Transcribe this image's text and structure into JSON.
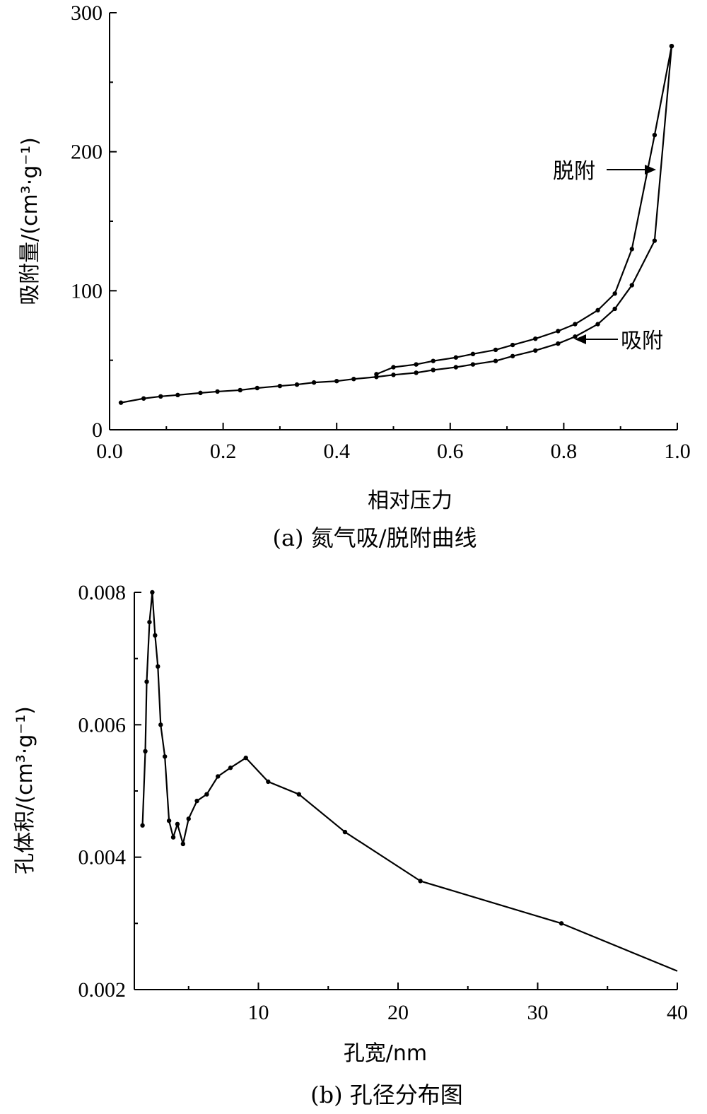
{
  "chart_data": [
    {
      "type": "line",
      "caption": "(a) 氮气吸/脱附曲线",
      "xlabel": "相对压力",
      "ylabel": "吸附量/(cm³·g⁻¹)",
      "xlim": [
        0.0,
        1.0
      ],
      "ylim": [
        0,
        300
      ],
      "x_ticks": [
        "0.0",
        "0.2",
        "0.4",
        "0.6",
        "0.8",
        "1.0"
      ],
      "y_ticks": [
        "0",
        "100",
        "200",
        "300"
      ],
      "grid": false,
      "series": [
        {
          "name": "吸附",
          "x": [
            0.02,
            0.06,
            0.09,
            0.12,
            0.16,
            0.19,
            0.23,
            0.26,
            0.3,
            0.33,
            0.36,
            0.4,
            0.43,
            0.47,
            0.5,
            0.54,
            0.57,
            0.61,
            0.64,
            0.68,
            0.71,
            0.75,
            0.79,
            0.82,
            0.86,
            0.89,
            0.92,
            0.96,
            0.99
          ],
          "y": [
            19.5,
            22.5,
            24,
            25,
            26.5,
            27.5,
            28.5,
            30,
            31.5,
            32.5,
            34,
            35,
            36.5,
            38,
            39.5,
            41,
            43,
            45,
            47,
            49.5,
            53,
            57,
            62,
            67,
            76,
            87,
            104,
            136,
            276
          ]
        },
        {
          "name": "脱附",
          "x": [
            0.47,
            0.5,
            0.54,
            0.57,
            0.61,
            0.64,
            0.68,
            0.71,
            0.75,
            0.79,
            0.82,
            0.86,
            0.89,
            0.92,
            0.96,
            0.99
          ],
          "y": [
            40,
            45,
            47,
            49.5,
            52,
            54.5,
            57.5,
            61,
            65.5,
            71,
            76,
            86,
            98,
            130,
            212,
            276
          ]
        }
      ],
      "annotations": [
        "脱附",
        "吸附"
      ]
    },
    {
      "type": "line",
      "caption": "(b) 孔径分布图",
      "xlabel": "孔宽/nm",
      "ylabel": "孔体积/(cm³·g⁻¹)",
      "xlim": [
        1.5,
        40
      ],
      "ylim": [
        0.002,
        0.008
      ],
      "x_ticks": [
        "10",
        "20",
        "30",
        "40"
      ],
      "y_ticks": [
        "0.002",
        "0.004",
        "0.006",
        "0.008"
      ],
      "grid": false,
      "series": [
        {
          "x": [
            1.7,
            1.9,
            2.0,
            2.2,
            2.4,
            2.6,
            2.8,
            3.0,
            3.3,
            3.6,
            3.9,
            4.2,
            4.6,
            5.0,
            5.6,
            6.3,
            7.1,
            8.0,
            9.1,
            10.7,
            12.9,
            16.2,
            21.6,
            31.7,
            40.0
          ],
          "y": [
            0.00448,
            0.0056,
            0.00665,
            0.00755,
            0.008,
            0.00735,
            0.00688,
            0.006,
            0.00552,
            0.00455,
            0.0043,
            0.0045,
            0.0042,
            0.00458,
            0.00485,
            0.00495,
            0.00522,
            0.00535,
            0.0055,
            0.00514,
            0.00495,
            0.00438,
            0.00364,
            0.003,
            0.00228
          ]
        }
      ]
    }
  ]
}
